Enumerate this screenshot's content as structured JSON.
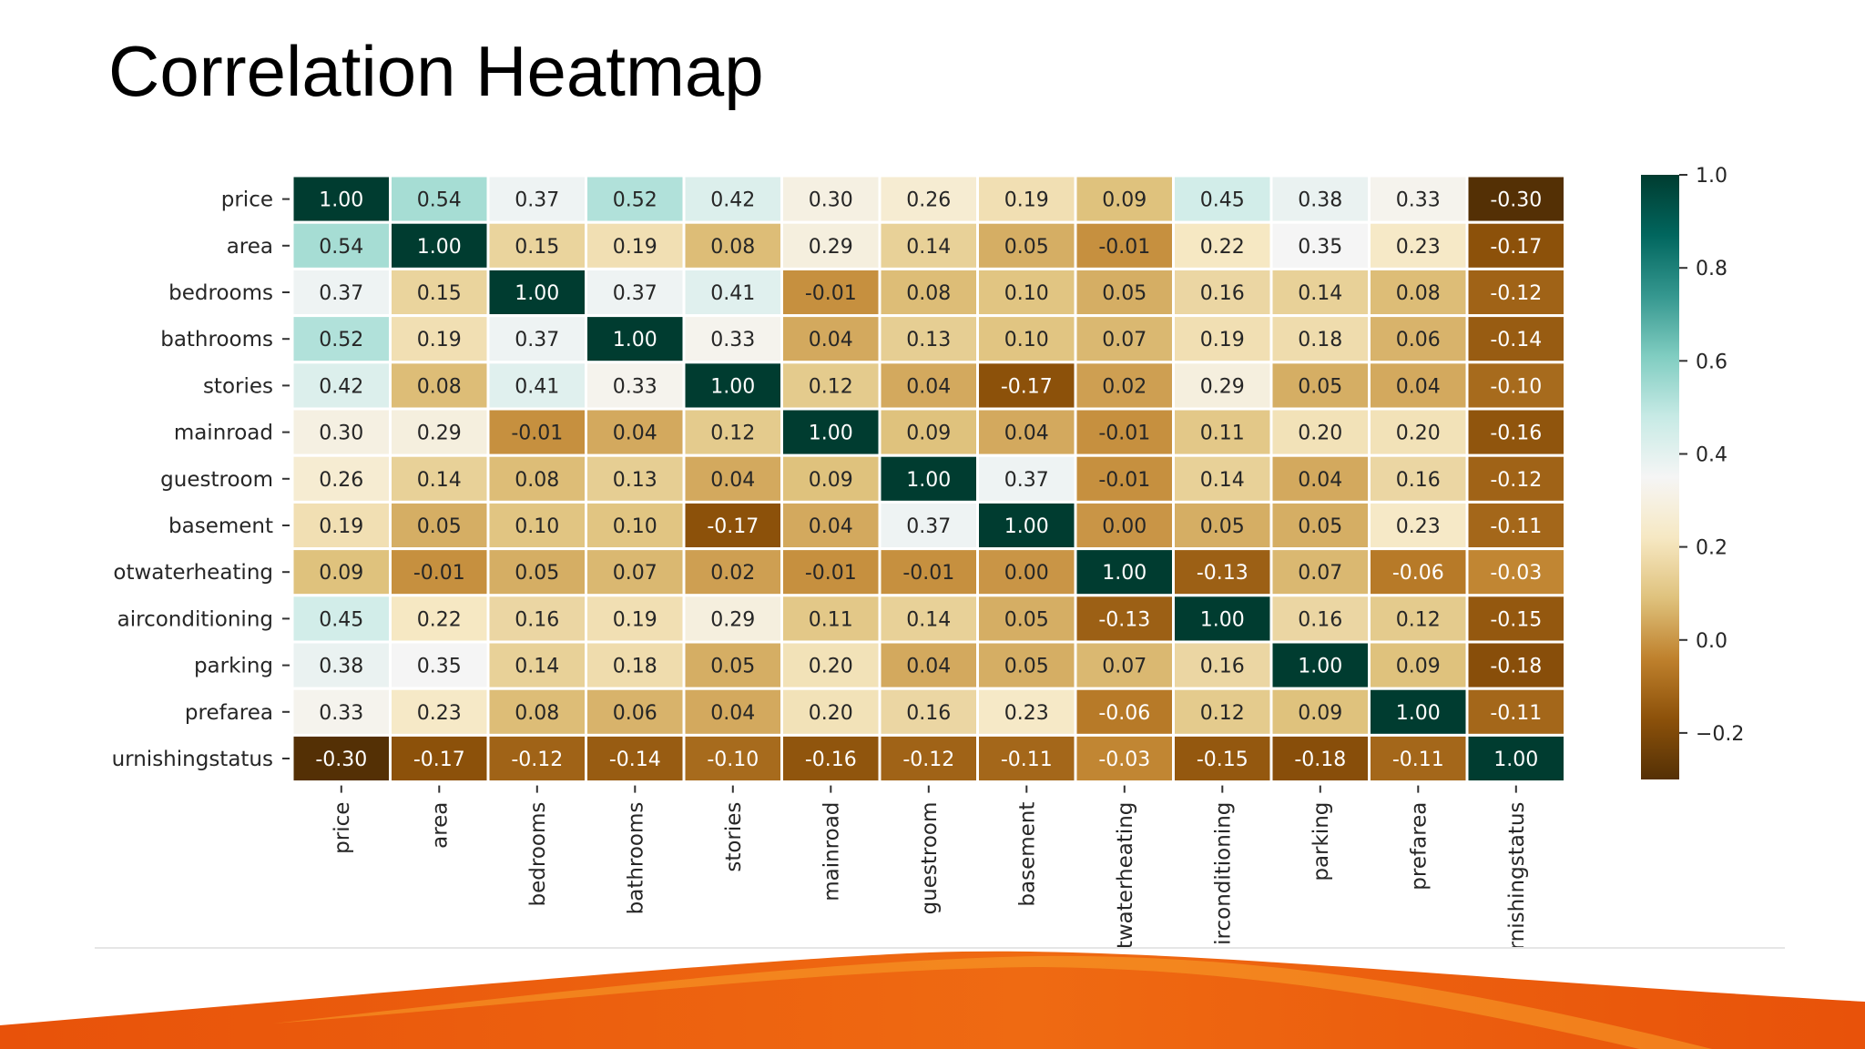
{
  "slide": {
    "title": "Correlation Heatmap"
  },
  "chart_data": {
    "type": "heatmap",
    "title": "",
    "row_labels": [
      "price",
      "area",
      "bedrooms",
      "bathrooms",
      "stories",
      "mainroad",
      "guestroom",
      "basement",
      "otwaterheating",
      "airconditioning",
      "parking",
      "prefarea",
      "urnishingstatus"
    ],
    "column_labels": [
      "price",
      "area",
      "bedrooms",
      "bathrooms",
      "stories",
      "mainroad",
      "guestroom",
      "basement",
      "hotwaterheating",
      "airconditioning",
      "parking",
      "prefarea",
      "furnishingstatus"
    ],
    "values": [
      [
        1.0,
        0.54,
        0.37,
        0.52,
        0.42,
        0.3,
        0.26,
        0.19,
        0.09,
        0.45,
        0.38,
        0.33,
        -0.3
      ],
      [
        0.54,
        1.0,
        0.15,
        0.19,
        0.08,
        0.29,
        0.14,
        0.05,
        -0.01,
        0.22,
        0.35,
        0.23,
        -0.17
      ],
      [
        0.37,
        0.15,
        1.0,
        0.37,
        0.41,
        -0.01,
        0.08,
        0.1,
        0.05,
        0.16,
        0.14,
        0.08,
        -0.12
      ],
      [
        0.52,
        0.19,
        0.37,
        1.0,
        0.33,
        0.04,
        0.13,
        0.1,
        0.07,
        0.19,
        0.18,
        0.06,
        -0.14
      ],
      [
        0.42,
        0.08,
        0.41,
        0.33,
        1.0,
        0.12,
        0.04,
        -0.17,
        0.02,
        0.29,
        0.05,
        0.04,
        -0.1
      ],
      [
        0.3,
        0.29,
        -0.01,
        0.04,
        0.12,
        1.0,
        0.09,
        0.04,
        -0.01,
        0.11,
        0.2,
        0.2,
        -0.16
      ],
      [
        0.26,
        0.14,
        0.08,
        0.13,
        0.04,
        0.09,
        1.0,
        0.37,
        -0.01,
        0.14,
        0.04,
        0.16,
        -0.12
      ],
      [
        0.19,
        0.05,
        0.1,
        0.1,
        -0.17,
        0.04,
        0.37,
        1.0,
        0.0,
        0.05,
        0.05,
        0.23,
        -0.11
      ],
      [
        0.09,
        -0.01,
        0.05,
        0.07,
        0.02,
        -0.01,
        -0.01,
        0.0,
        1.0,
        -0.13,
        0.07,
        -0.06,
        -0.03
      ],
      [
        0.45,
        0.22,
        0.16,
        0.19,
        0.29,
        0.11,
        0.14,
        0.05,
        -0.13,
        1.0,
        0.16,
        0.12,
        -0.15
      ],
      [
        0.38,
        0.35,
        0.14,
        0.18,
        0.05,
        0.2,
        0.04,
        0.05,
        0.07,
        0.16,
        1.0,
        0.09,
        -0.18
      ],
      [
        0.33,
        0.23,
        0.08,
        0.06,
        0.04,
        0.2,
        0.16,
        0.23,
        -0.06,
        0.12,
        0.09,
        1.0,
        -0.11
      ],
      [
        -0.3,
        -0.17,
        -0.12,
        -0.14,
        -0.1,
        -0.16,
        -0.12,
        -0.11,
        -0.03,
        -0.15,
        -0.18,
        -0.11,
        1.0
      ]
    ],
    "value_format": "0.00",
    "value_range": [
      -0.3,
      1.0
    ],
    "colormap": "BrBG",
    "colorbar": {
      "ticks": [
        1.0,
        0.8,
        0.6,
        0.4,
        0.2,
        0.0,
        -0.2
      ],
      "tick_labels": [
        "1.0",
        "0.8",
        "0.6",
        "0.4",
        "0.2",
        "0.0",
        "−0.2"
      ],
      "placement": "right"
    },
    "cell_border_color": "#ffffff",
    "grid": false
  },
  "footer": {
    "accent_color": "#e8520a",
    "accent_light": "#f7a02a"
  }
}
